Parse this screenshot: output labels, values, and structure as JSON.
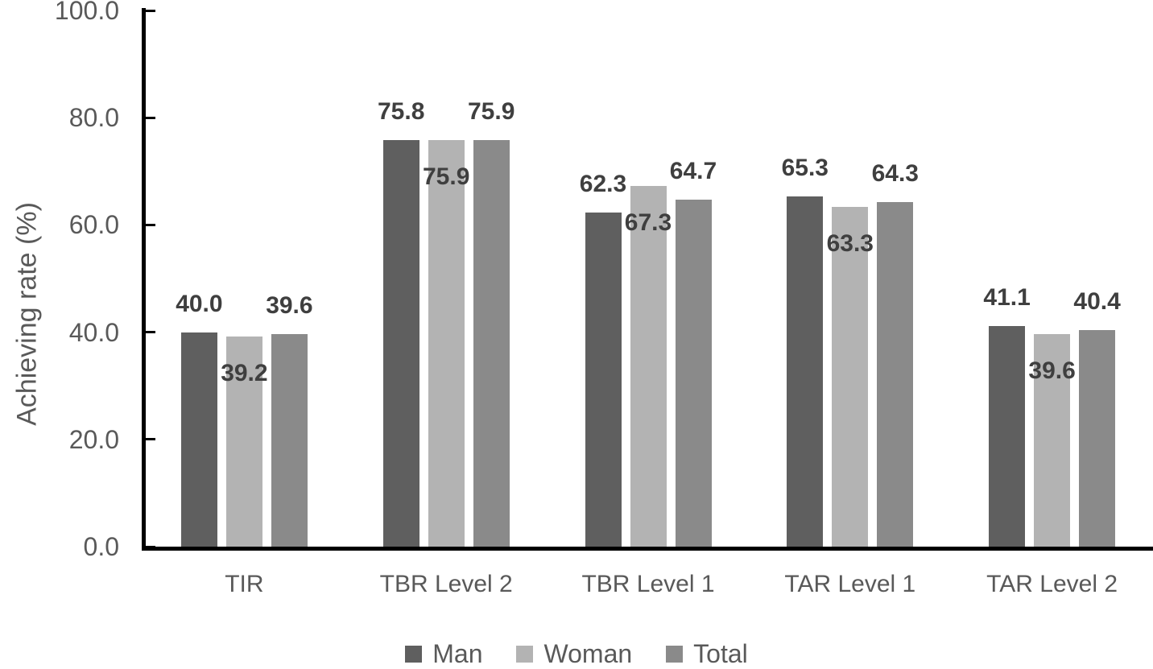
{
  "chart_data": {
    "type": "bar",
    "title": "",
    "ylabel": "Achieving rate (%)",
    "xlabel": "",
    "ylim": [
      0,
      100
    ],
    "yticks": [
      0,
      20,
      40,
      60,
      80,
      100
    ],
    "ytick_labels": [
      "0.0",
      "20.0",
      "40.0",
      "60.0",
      "80.0",
      "100.0"
    ],
    "categories": [
      "TIR",
      "TBR Level 2",
      "TBR Level 1",
      "TAR Level 1",
      "TAR Level 2"
    ],
    "series": [
      {
        "name": "Man",
        "color": "#5f5f5f",
        "label_position": "above",
        "values": [
          40.0,
          75.8,
          62.3,
          65.3,
          41.1
        ]
      },
      {
        "name": "Woman",
        "color": "#b3b3b3",
        "label_position": "inside-top",
        "values": [
          39.2,
          75.9,
          67.3,
          63.3,
          39.6
        ]
      },
      {
        "name": "Total",
        "color": "#8a8a8a",
        "label_position": "above",
        "values": [
          39.6,
          75.9,
          64.7,
          64.3,
          40.4
        ]
      }
    ],
    "value_label_decimals": 1,
    "legend_position": "bottom",
    "grid": false,
    "colors": {
      "axis": "#000000",
      "axis_text": "#595959",
      "value_label_text": "#3f3f3f"
    }
  }
}
